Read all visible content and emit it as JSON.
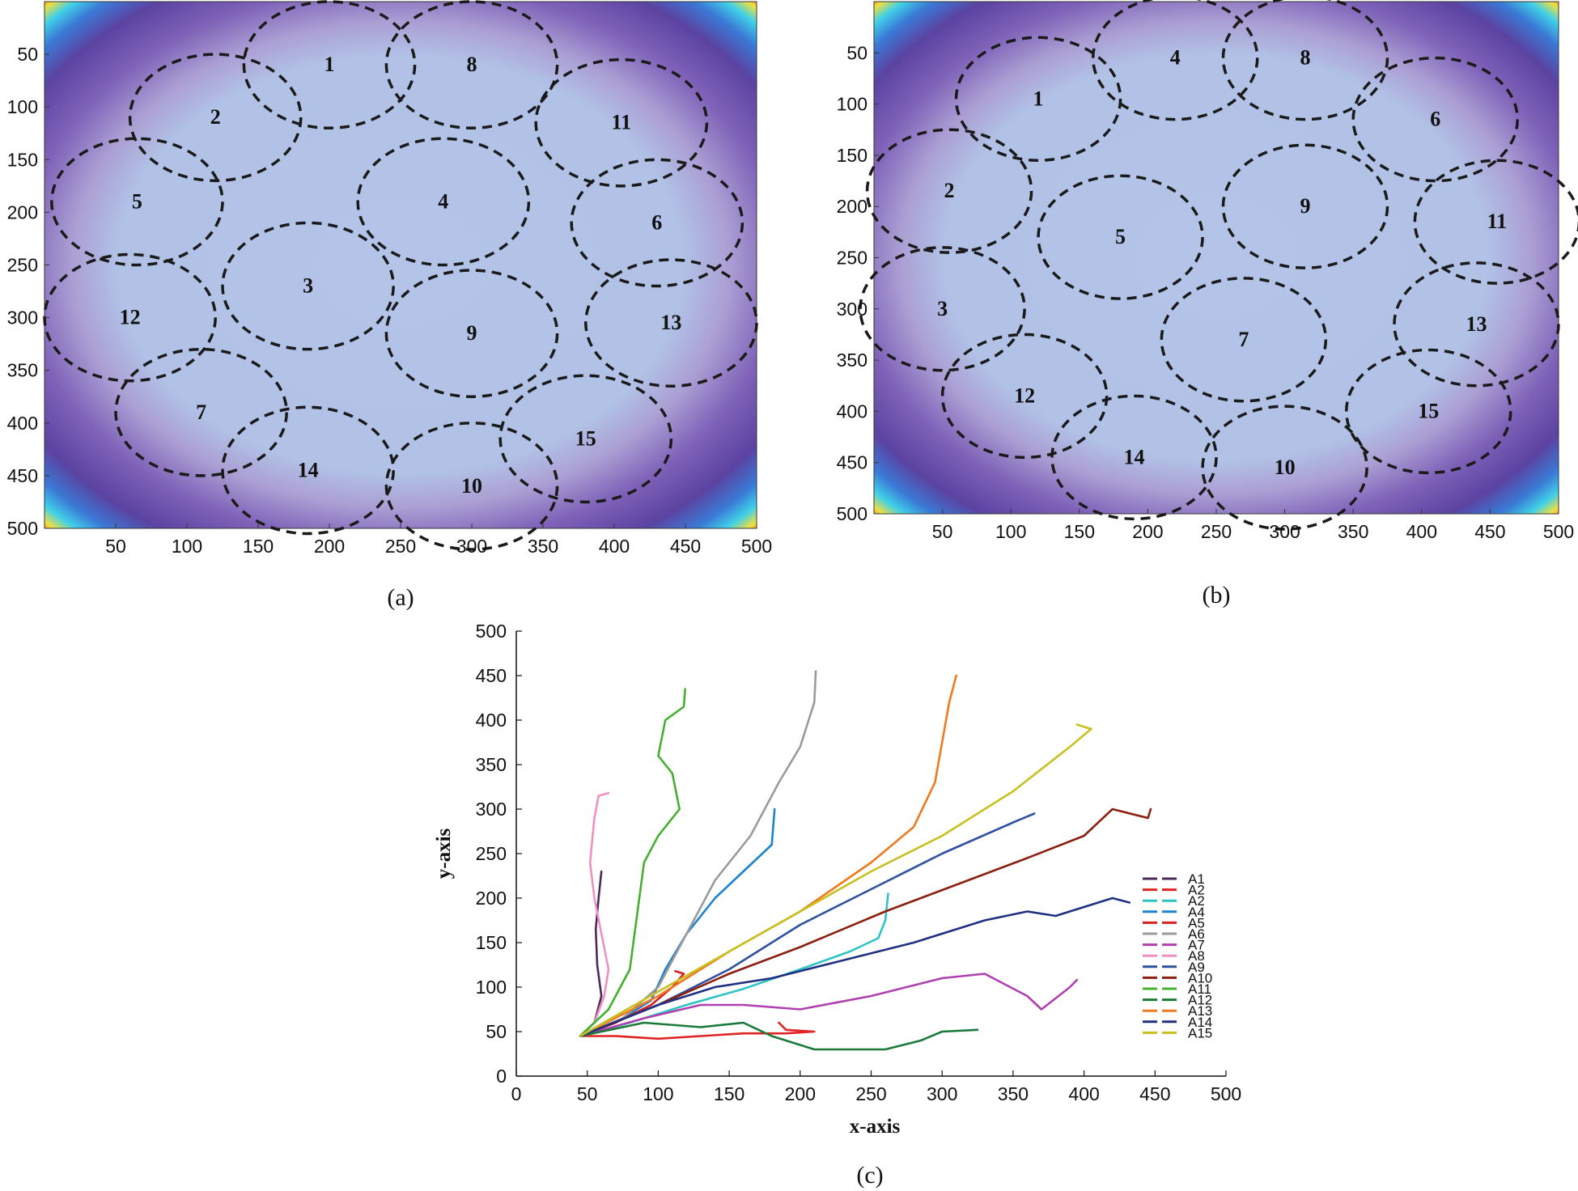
{
  "chart_data": [
    {
      "panel": "a",
      "type": "heatmap",
      "caption": "(a)",
      "xlim": [
        0,
        500
      ],
      "ylim": [
        0,
        500
      ],
      "xticks": [
        "50",
        "100",
        "150",
        "200",
        "250",
        "300",
        "350",
        "400",
        "450",
        "500"
      ],
      "yticks": [
        "50",
        "100",
        "150",
        "200",
        "250",
        "300",
        "350",
        "400",
        "450",
        "500"
      ],
      "circles": [
        {
          "label": "1",
          "cx": 200,
          "cy": 60,
          "rx": 60,
          "ry": 60
        },
        {
          "label": "2",
          "cx": 120,
          "cy": 110,
          "rx": 60,
          "ry": 60
        },
        {
          "label": "3",
          "cx": 185,
          "cy": 270,
          "rx": 60,
          "ry": 60
        },
        {
          "label": "4",
          "cx": 280,
          "cy": 190,
          "rx": 60,
          "ry": 60
        },
        {
          "label": "5",
          "cx": 65,
          "cy": 190,
          "rx": 60,
          "ry": 60
        },
        {
          "label": "6",
          "cx": 430,
          "cy": 210,
          "rx": 60,
          "ry": 60
        },
        {
          "label": "7",
          "cx": 110,
          "cy": 390,
          "rx": 60,
          "ry": 60
        },
        {
          "label": "8",
          "cx": 300,
          "cy": 60,
          "rx": 60,
          "ry": 60
        },
        {
          "label": "9",
          "cx": 300,
          "cy": 315,
          "rx": 60,
          "ry": 60
        },
        {
          "label": "10",
          "cx": 300,
          "cy": 460,
          "rx": 60,
          "ry": 60
        },
        {
          "label": "11",
          "cx": 405,
          "cy": 115,
          "rx": 60,
          "ry": 60
        },
        {
          "label": "12",
          "cx": 60,
          "cy": 300,
          "rx": 60,
          "ry": 60
        },
        {
          "label": "13",
          "cx": 440,
          "cy": 305,
          "rx": 60,
          "ry": 60
        },
        {
          "label": "14",
          "cx": 185,
          "cy": 445,
          "rx": 60,
          "ry": 60
        },
        {
          "label": "15",
          "cx": 380,
          "cy": 415,
          "rx": 60,
          "ry": 60
        }
      ]
    },
    {
      "panel": "b",
      "type": "heatmap",
      "caption": "(b)",
      "xlim": [
        0,
        500
      ],
      "ylim": [
        0,
        500
      ],
      "xticks": [
        "50",
        "100",
        "150",
        "200",
        "250",
        "300",
        "350",
        "400",
        "450",
        "500"
      ],
      "yticks": [
        "50",
        "100",
        "150",
        "200",
        "250",
        "300",
        "350",
        "400",
        "450",
        "500"
      ],
      "circles": [
        {
          "label": "1",
          "cx": 120,
          "cy": 95,
          "rx": 60,
          "ry": 60
        },
        {
          "label": "2",
          "cx": 55,
          "cy": 185,
          "rx": 60,
          "ry": 60
        },
        {
          "label": "3",
          "cx": 50,
          "cy": 300,
          "rx": 60,
          "ry": 60
        },
        {
          "label": "4",
          "cx": 220,
          "cy": 55,
          "rx": 60,
          "ry": 60
        },
        {
          "label": "5",
          "cx": 180,
          "cy": 230,
          "rx": 60,
          "ry": 60
        },
        {
          "label": "6",
          "cx": 410,
          "cy": 115,
          "rx": 60,
          "ry": 60
        },
        {
          "label": "7",
          "cx": 270,
          "cy": 330,
          "rx": 60,
          "ry": 60
        },
        {
          "label": "8",
          "cx": 315,
          "cy": 55,
          "rx": 60,
          "ry": 60
        },
        {
          "label": "9",
          "cx": 315,
          "cy": 200,
          "rx": 60,
          "ry": 60
        },
        {
          "label": "10",
          "cx": 300,
          "cy": 455,
          "rx": 60,
          "ry": 60
        },
        {
          "label": "11",
          "cx": 455,
          "cy": 215,
          "rx": 60,
          "ry": 60
        },
        {
          "label": "12",
          "cx": 110,
          "cy": 385,
          "rx": 60,
          "ry": 60
        },
        {
          "label": "13",
          "cx": 440,
          "cy": 315,
          "rx": 60,
          "ry": 60
        },
        {
          "label": "14",
          "cx": 190,
          "cy": 445,
          "rx": 60,
          "ry": 60
        },
        {
          "label": "15",
          "cx": 405,
          "cy": 400,
          "rx": 60,
          "ry": 60
        }
      ]
    },
    {
      "panel": "c",
      "type": "line",
      "caption": "(c)",
      "xlabel": "x-axis",
      "ylabel": "y-axis",
      "xlim": [
        0,
        500
      ],
      "ylim": [
        0,
        500
      ],
      "xticks": [
        "0",
        "50",
        "100",
        "150",
        "200",
        "250",
        "300",
        "350",
        "400",
        "450",
        "500"
      ],
      "yticks": [
        "0",
        "50",
        "100",
        "150",
        "200",
        "250",
        "300",
        "350",
        "400",
        "450",
        "500"
      ],
      "series": [
        {
          "name": "A1",
          "color": "#4a2a5a",
          "points": [
            [
              45,
              45
            ],
            [
              55,
              60
            ],
            [
              60,
              90
            ],
            [
              57,
              125
            ],
            [
              56,
              165
            ],
            [
              58,
              200
            ],
            [
              60,
              230
            ]
          ]
        },
        {
          "name": "A2",
          "color": "#e02424",
          "points": [
            [
              45,
              45
            ],
            [
              70,
              45
            ],
            [
              100,
              42
            ],
            [
              130,
              45
            ],
            [
              160,
              48
            ],
            [
              190,
              48
            ],
            [
              210,
              50
            ],
            [
              190,
              52
            ],
            [
              185,
              60
            ]
          ]
        },
        {
          "name": "A2",
          "color": "#2ec4c4",
          "points": [
            [
              45,
              45
            ],
            [
              80,
              60
            ],
            [
              120,
              80
            ],
            [
              160,
              98
            ],
            [
              200,
              120
            ],
            [
              235,
              140
            ],
            [
              255,
              155
            ],
            [
              260,
              175
            ],
            [
              262,
              205
            ]
          ]
        },
        {
          "name": "A4",
          "color": "#1e82cc",
          "points": [
            [
              45,
              45
            ],
            [
              70,
              60
            ],
            [
              95,
              85
            ],
            [
              105,
              120
            ],
            [
              120,
              160
            ],
            [
              140,
              200
            ],
            [
              160,
              230
            ],
            [
              180,
              260
            ],
            [
              182,
              300
            ]
          ]
        },
        {
          "name": "A5",
          "color": "#d62020",
          "points": [
            [
              45,
              45
            ],
            [
              70,
              60
            ],
            [
              95,
              80
            ],
            [
              110,
              100
            ],
            [
              118,
              115
            ],
            [
              112,
              118
            ]
          ]
        },
        {
          "name": "A6",
          "color": "#9a9a9a",
          "points": [
            [
              45,
              45
            ],
            [
              75,
              65
            ],
            [
              100,
              100
            ],
            [
              120,
              160
            ],
            [
              140,
              220
            ],
            [
              165,
              270
            ],
            [
              185,
              330
            ],
            [
              200,
              370
            ],
            [
              210,
              420
            ],
            [
              211,
              455
            ]
          ]
        },
        {
          "name": "A7",
          "color": "#b040b0",
          "points": [
            [
              45,
              45
            ],
            [
              90,
              65
            ],
            [
              130,
              80
            ],
            [
              160,
              80
            ],
            [
              200,
              75
            ],
            [
              250,
              90
            ],
            [
              300,
              110
            ],
            [
              330,
              115
            ],
            [
              360,
              90
            ],
            [
              370,
              75
            ],
            [
              390,
              100
            ],
            [
              395,
              108
            ]
          ]
        },
        {
          "name": "A8",
          "color": "#f090c0",
          "points": [
            [
              45,
              45
            ],
            [
              55,
              60
            ],
            [
              62,
              90
            ],
            [
              65,
              120
            ],
            [
              60,
              160
            ],
            [
              55,
              200
            ],
            [
              52,
              240
            ],
            [
              55,
              290
            ],
            [
              58,
              315
            ],
            [
              65,
              318
            ]
          ]
        },
        {
          "name": "A9",
          "color": "#3050a0",
          "points": [
            [
              45,
              45
            ],
            [
              100,
              80
            ],
            [
              150,
              120
            ],
            [
              200,
              170
            ],
            [
              250,
              210
            ],
            [
              300,
              250
            ],
            [
              350,
              285
            ],
            [
              365,
              295
            ]
          ]
        },
        {
          "name": "A10",
          "color": "#8b2010",
          "points": [
            [
              45,
              45
            ],
            [
              100,
              80
            ],
            [
              150,
              115
            ],
            [
              200,
              145
            ],
            [
              260,
              185
            ],
            [
              310,
              215
            ],
            [
              360,
              245
            ],
            [
              400,
              270
            ],
            [
              420,
              300
            ],
            [
              445,
              290
            ],
            [
              447,
              300
            ]
          ]
        },
        {
          "name": "A11",
          "color": "#44b030",
          "points": [
            [
              45,
              45
            ],
            [
              65,
              75
            ],
            [
              80,
              120
            ],
            [
              85,
              180
            ],
            [
              90,
              240
            ],
            [
              100,
              270
            ],
            [
              115,
              300
            ],
            [
              110,
              340
            ],
            [
              100,
              360
            ],
            [
              105,
              400
            ],
            [
              118,
              415
            ],
            [
              119,
              435
            ]
          ]
        },
        {
          "name": "A12",
          "color": "#1a7a3a",
          "points": [
            [
              45,
              45
            ],
            [
              90,
              60
            ],
            [
              130,
              55
            ],
            [
              160,
              60
            ],
            [
              180,
              45
            ],
            [
              210,
              30
            ],
            [
              260,
              30
            ],
            [
              285,
              40
            ],
            [
              300,
              50
            ],
            [
              325,
              52
            ]
          ]
        },
        {
          "name": "A13",
          "color": "#ee7a20",
          "points": [
            [
              45,
              45
            ],
            [
              100,
              90
            ],
            [
              150,
              140
            ],
            [
              200,
              185
            ],
            [
              250,
              240
            ],
            [
              280,
              280
            ],
            [
              295,
              330
            ],
            [
              300,
              375
            ],
            [
              305,
              420
            ],
            [
              310,
              450
            ]
          ]
        },
        {
          "name": "A14",
          "color": "#203080",
          "points": [
            [
              45,
              45
            ],
            [
              100,
              80
            ],
            [
              140,
              100
            ],
            [
              180,
              110
            ],
            [
              230,
              130
            ],
            [
              280,
              150
            ],
            [
              330,
              175
            ],
            [
              360,
              185
            ],
            [
              380,
              180
            ],
            [
              420,
              200
            ],
            [
              432,
              195
            ]
          ]
        },
        {
          "name": "A15",
          "color": "#c8c020",
          "points": [
            [
              45,
              45
            ],
            [
              100,
              95
            ],
            [
              150,
              140
            ],
            [
              200,
              185
            ],
            [
              250,
              230
            ],
            [
              300,
              270
            ],
            [
              350,
              320
            ],
            [
              390,
              370
            ],
            [
              405,
              390
            ],
            [
              395,
              395
            ]
          ]
        }
      ]
    }
  ]
}
